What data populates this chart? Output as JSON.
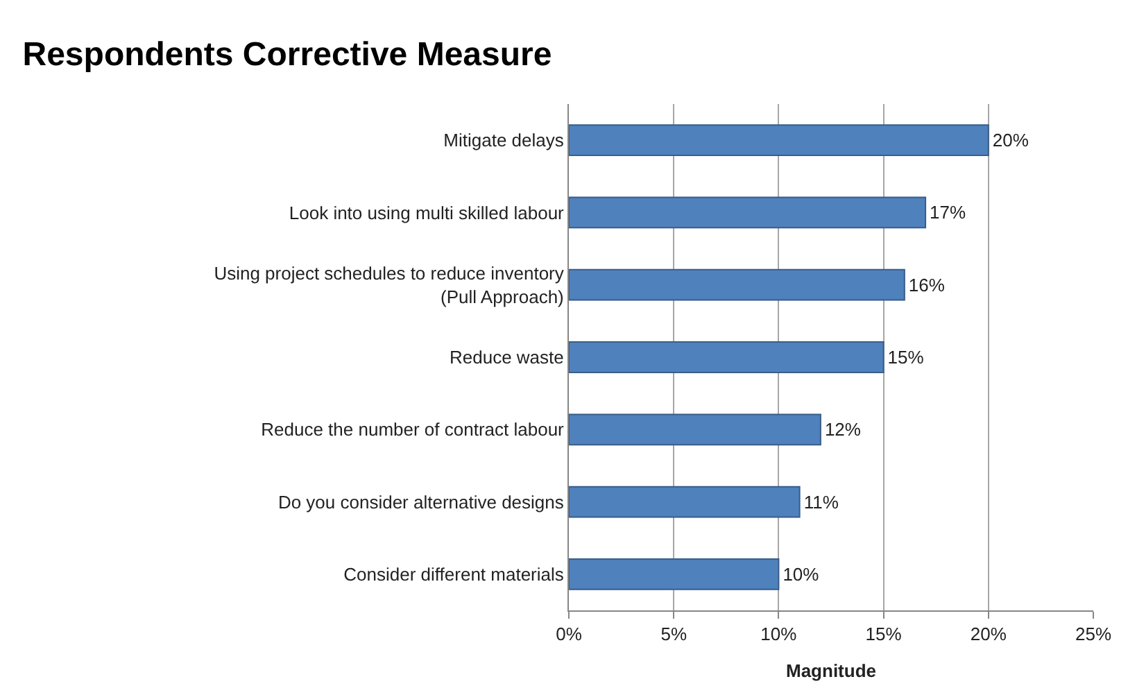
{
  "chart_data": {
    "type": "bar",
    "orientation": "horizontal",
    "title": "Respondents Corrective Measure",
    "xlabel": "Magnitude",
    "categories": [
      "Mitigate delays",
      "Look into using multi skilled labour",
      "Using project schedules to reduce inventory (Pull Approach)",
      "Reduce waste",
      "Reduce the number of contract labour",
      "Do you consider alternative designs",
      "Consider different materials"
    ],
    "values": [
      20,
      17,
      16,
      15,
      12,
      11,
      10
    ],
    "value_labels": [
      "20%",
      "17%",
      "16%",
      "15%",
      "12%",
      "11%",
      "10%"
    ],
    "color": "#4f81bd",
    "xlim": [
      0,
      25
    ],
    "xticks": [
      {
        "value": 0,
        "label": "0%"
      },
      {
        "value": 5,
        "label": "5%"
      },
      {
        "value": 10,
        "label": "10%"
      },
      {
        "value": 15,
        "label": "15%"
      },
      {
        "value": 20,
        "label": "20%"
      },
      {
        "value": 25,
        "label": "25%"
      }
    ],
    "grid": "x",
    "legend": false
  }
}
